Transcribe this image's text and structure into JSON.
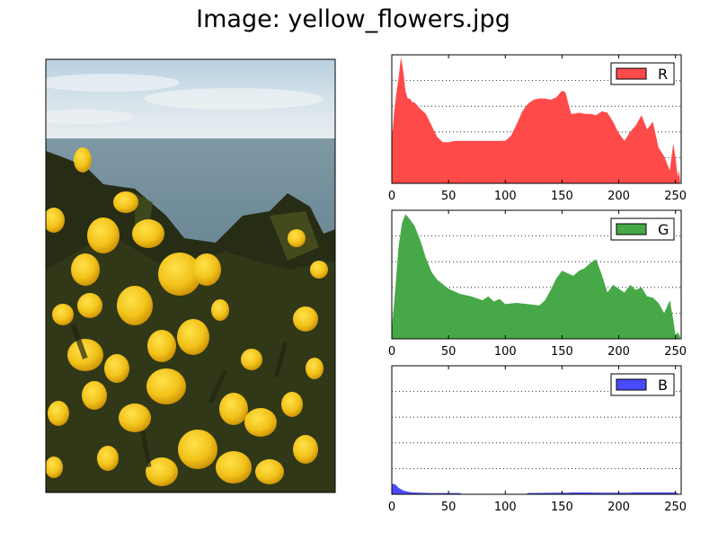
{
  "figure": {
    "title": "Image: yellow_flowers.jpg"
  },
  "image_panel": {
    "icon": "photo-yellow-gorse-flowers-sea-sky"
  },
  "chart_data": [
    {
      "type": "area",
      "legend": "R",
      "legend_position": "top-right",
      "color": "#ff4a4a",
      "xlim": [
        0,
        255
      ],
      "ylim": [
        0,
        1
      ],
      "x_ticks": [
        "0",
        "50",
        "100",
        "150",
        "200",
        "250"
      ],
      "grid": "horizontal dotted",
      "x": [
        0,
        2,
        4,
        6,
        8,
        9,
        10,
        12,
        14,
        16,
        18,
        20,
        25,
        30,
        35,
        40,
        45,
        50,
        55,
        60,
        70,
        80,
        90,
        100,
        105,
        110,
        115,
        120,
        125,
        130,
        135,
        140,
        145,
        150,
        153,
        155,
        158,
        160,
        165,
        170,
        175,
        180,
        185,
        190,
        195,
        200,
        205,
        210,
        215,
        220,
        225,
        230,
        235,
        240,
        245,
        248,
        250,
        252,
        253,
        254
      ],
      "values": [
        0.33,
        0.55,
        0.7,
        0.82,
        0.98,
        0.93,
        0.88,
        0.72,
        0.66,
        0.66,
        0.63,
        0.63,
        0.58,
        0.54,
        0.45,
        0.36,
        0.32,
        0.32,
        0.33,
        0.33,
        0.33,
        0.33,
        0.33,
        0.33,
        0.37,
        0.46,
        0.56,
        0.62,
        0.65,
        0.66,
        0.66,
        0.65,
        0.67,
        0.72,
        0.71,
        0.64,
        0.54,
        0.54,
        0.55,
        0.54,
        0.54,
        0.53,
        0.56,
        0.55,
        0.48,
        0.39,
        0.33,
        0.4,
        0.45,
        0.53,
        0.42,
        0.48,
        0.28,
        0.21,
        0.1,
        0.31,
        0.2,
        0.05,
        0.1,
        0.03
      ]
    },
    {
      "type": "area",
      "legend": "G",
      "legend_position": "top-right",
      "color": "#47a847",
      "xlim": [
        0,
        255
      ],
      "ylim": [
        0,
        1
      ],
      "x_ticks": [
        "0",
        "50",
        "100",
        "150",
        "200",
        "250"
      ],
      "grid": "horizontal dotted",
      "x": [
        0,
        3,
        6,
        9,
        12,
        15,
        20,
        25,
        30,
        35,
        40,
        50,
        60,
        70,
        80,
        85,
        90,
        95,
        100,
        110,
        120,
        130,
        135,
        140,
        145,
        150,
        155,
        160,
        165,
        170,
        175,
        180,
        185,
        190,
        195,
        200,
        205,
        210,
        215,
        220,
        225,
        230,
        235,
        240,
        245,
        248,
        250,
        252,
        254
      ],
      "values": [
        0.08,
        0.38,
        0.72,
        0.9,
        0.97,
        0.94,
        0.88,
        0.77,
        0.63,
        0.52,
        0.46,
        0.39,
        0.35,
        0.33,
        0.3,
        0.33,
        0.29,
        0.31,
        0.27,
        0.28,
        0.27,
        0.26,
        0.3,
        0.38,
        0.47,
        0.53,
        0.51,
        0.49,
        0.53,
        0.55,
        0.59,
        0.62,
        0.5,
        0.36,
        0.42,
        0.39,
        0.36,
        0.42,
        0.38,
        0.4,
        0.33,
        0.32,
        0.28,
        0.2,
        0.3,
        0.15,
        0.03,
        0.05,
        0.02
      ]
    },
    {
      "type": "area",
      "legend": "B",
      "legend_position": "top-right",
      "color": "#4a4aff",
      "xlim": [
        0,
        255
      ],
      "ylim": [
        0,
        1
      ],
      "x_ticks": [
        "0",
        "50",
        "100",
        "150",
        "200",
        "250"
      ],
      "grid": "horizontal dotted",
      "x": [
        0,
        2,
        4,
        6,
        8,
        10,
        14,
        18,
        25,
        35,
        45,
        55,
        60,
        62,
        80,
        100,
        118,
        120,
        145,
        155,
        160,
        185,
        200,
        210,
        212,
        250,
        252,
        254
      ],
      "values": [
        0.08,
        0.08,
        0.07,
        0.05,
        0.04,
        0.03,
        0.02,
        0.015,
        0.012,
        0.01,
        0.01,
        0.01,
        0.01,
        0.0,
        0.0,
        0.0,
        0.0,
        0.01,
        0.012,
        0.012,
        0.015,
        0.012,
        0.012,
        0.012,
        0.015,
        0.015,
        0.005,
        0.0
      ]
    }
  ]
}
